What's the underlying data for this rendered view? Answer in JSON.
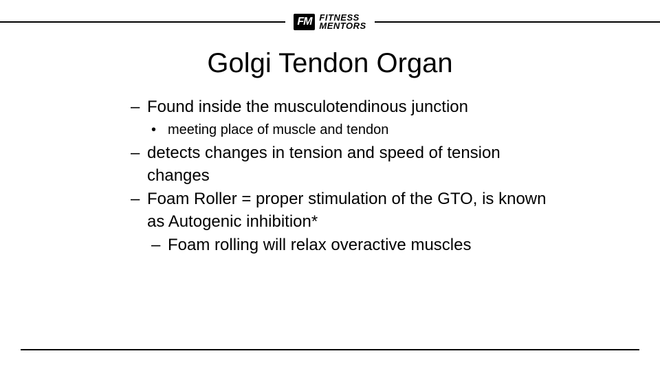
{
  "logo": {
    "badge": "FM",
    "line1": "FITNESS",
    "line2": "MENTORS"
  },
  "title": "Golgi Tendon Organ",
  "bullets": {
    "b1": "Found inside the musculotendinous junction",
    "b1a": "meeting place of muscle and tendon",
    "b2": "detects changes in tension and speed of tension changes",
    "b3": "Foam Roller = proper stimulation of the GTO, is known as Autogenic inhibition*",
    "b3a": "Foam rolling will relax overactive muscles"
  },
  "style": {
    "background": "#ffffff",
    "text_color": "#000000",
    "line_color": "#000000",
    "title_fontsize": 40,
    "body_fontsize": 24,
    "sub_fontsize": 20,
    "font_family": "Arial"
  }
}
